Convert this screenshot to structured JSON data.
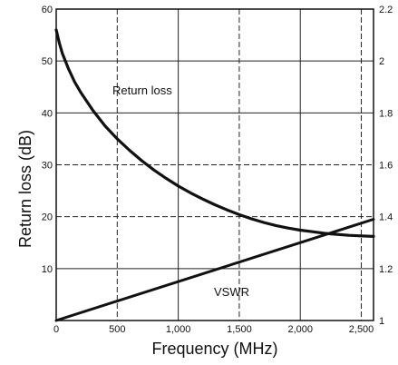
{
  "chart_data": {
    "type": "line",
    "xlabel": "Frequency (MHz)",
    "ylabel_left": "Return loss (dB)",
    "ylabel_right": "",
    "xlim": [
      0,
      2600
    ],
    "ylim_left": [
      0,
      60
    ],
    "ylim_right": [
      1,
      2.2
    ],
    "x_ticks": [
      0,
      500,
      1000,
      1500,
      2000,
      2500
    ],
    "x_tick_labels": [
      "0",
      "500",
      "1,000",
      "1,500",
      "2,000",
      "2,500"
    ],
    "y_left_ticks": [
      10,
      20,
      30,
      40,
      50,
      60
    ],
    "y_left_tick_labels": [
      "10",
      "20",
      "30",
      "40",
      "50",
      "60"
    ],
    "y_right_ticks": [
      1,
      1.2,
      1.4,
      1.6,
      1.8,
      2,
      2.2
    ],
    "y_right_tick_labels": [
      "1",
      "1.2",
      "1.4",
      "1.6",
      "1.8",
      "2",
      "2.2"
    ],
    "grid": true,
    "series": [
      {
        "name": "Return loss",
        "axis": "left",
        "x": [
          0,
          25,
          50,
          100,
          150,
          200,
          300,
          400,
          500,
          600,
          700,
          800,
          900,
          1000,
          1100,
          1200,
          1300,
          1400,
          1500,
          1600,
          1700,
          1800,
          1900,
          2000,
          2100,
          2200,
          2300,
          2400,
          2500,
          2600
        ],
        "y": [
          56,
          53.5,
          51.5,
          48.5,
          46.0,
          44.0,
          40.5,
          37.5,
          35.0,
          32.8,
          30.8,
          29.0,
          27.4,
          25.9,
          24.6,
          23.4,
          22.3,
          21.3,
          20.4,
          19.6,
          18.9,
          18.3,
          17.8,
          17.4,
          17.1,
          16.8,
          16.6,
          16.4,
          16.3,
          16.2
        ]
      },
      {
        "name": "VSWR",
        "axis": "right",
        "x": [
          0,
          2600
        ],
        "y": [
          1.0,
          1.39
        ]
      }
    ]
  }
}
